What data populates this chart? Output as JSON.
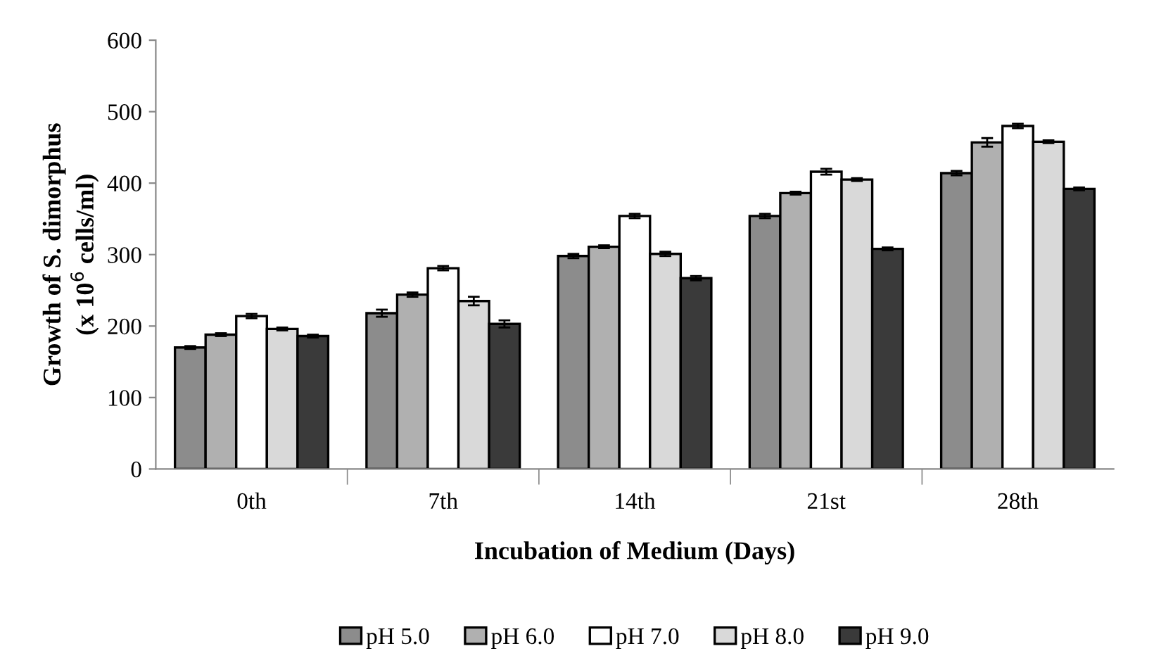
{
  "chart_data": {
    "type": "bar",
    "xlabel": "Incubation of Medium (Days)",
    "ylabel": "Growth of S. dimorphus\n(x 10$^{6}$ cells/ml)",
    "categories": [
      "0th",
      "7th",
      "14th",
      "21st",
      "28th"
    ],
    "series": [
      {
        "name": "pH 5.0",
        "color": "#8c8c8c",
        "values": [
          170,
          218,
          298,
          354,
          414
        ],
        "errors": [
          2,
          5,
          3,
          3,
          3
        ]
      },
      {
        "name": "pH 6.0",
        "color": "#b0b0b0",
        "values": [
          188,
          244,
          311,
          386,
          457
        ],
        "errors": [
          2,
          3,
          2,
          2,
          6
        ]
      },
      {
        "name": "pH 7.0",
        "color": "#ffffff",
        "values": [
          214,
          281,
          354,
          416,
          480
        ],
        "errors": [
          3,
          3,
          3,
          4,
          3
        ]
      },
      {
        "name": "pH 8.0",
        "color": "#d9d9d9",
        "values": [
          196,
          235,
          301,
          405,
          458
        ],
        "errors": [
          2,
          6,
          3,
          2,
          2
        ]
      },
      {
        "name": "pH 9.0",
        "color": "#3a3a3a",
        "values": [
          186,
          203,
          267,
          308,
          392
        ],
        "errors": [
          2,
          5,
          3,
          2,
          2
        ]
      }
    ],
    "ylim": [
      0,
      600
    ],
    "yticks": [
      0,
      100,
      200,
      300,
      400,
      500,
      600
    ],
    "grid": false,
    "legend": "bottom"
  }
}
